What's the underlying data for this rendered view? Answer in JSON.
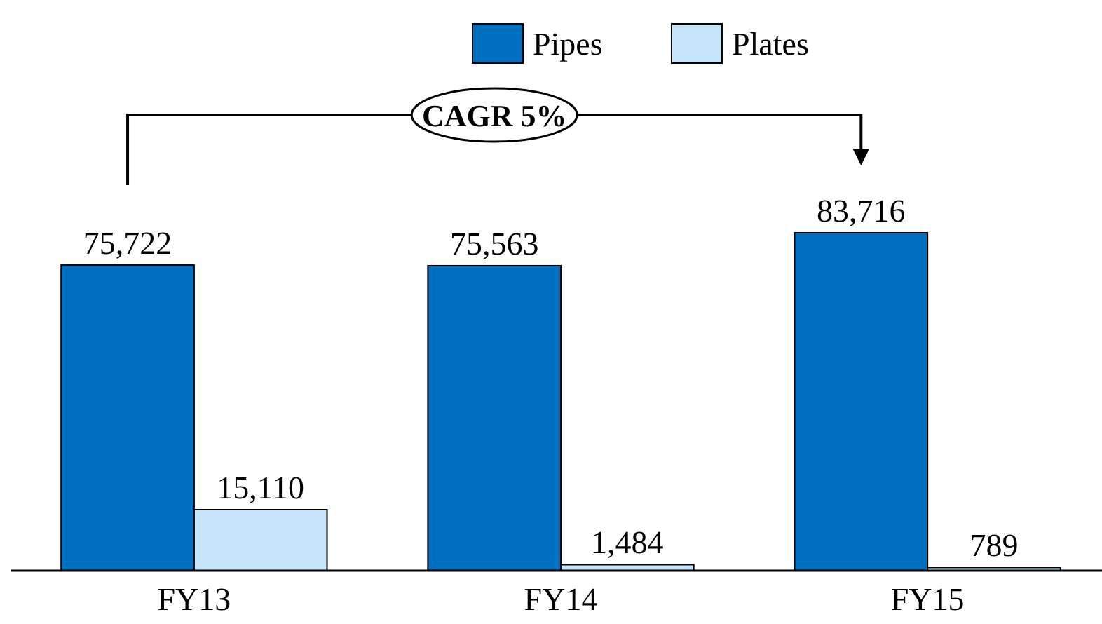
{
  "chart_data": {
    "type": "bar",
    "categories": [
      "FY13",
      "FY14",
      "FY15"
    ],
    "series": [
      {
        "name": "Pipes",
        "color": "#0070c0",
        "values": [
          75722,
          75563,
          83716
        ],
        "value_labels": [
          "75,722",
          "75,563",
          "83,716"
        ]
      },
      {
        "name": "Plates",
        "color": "#c5e5fb",
        "values": [
          15110,
          1484,
          789
        ],
        "value_labels": [
          "15,110",
          "1,484",
          "789"
        ]
      }
    ],
    "legend": "top",
    "annotations": [
      "CAGR 5%"
    ]
  }
}
